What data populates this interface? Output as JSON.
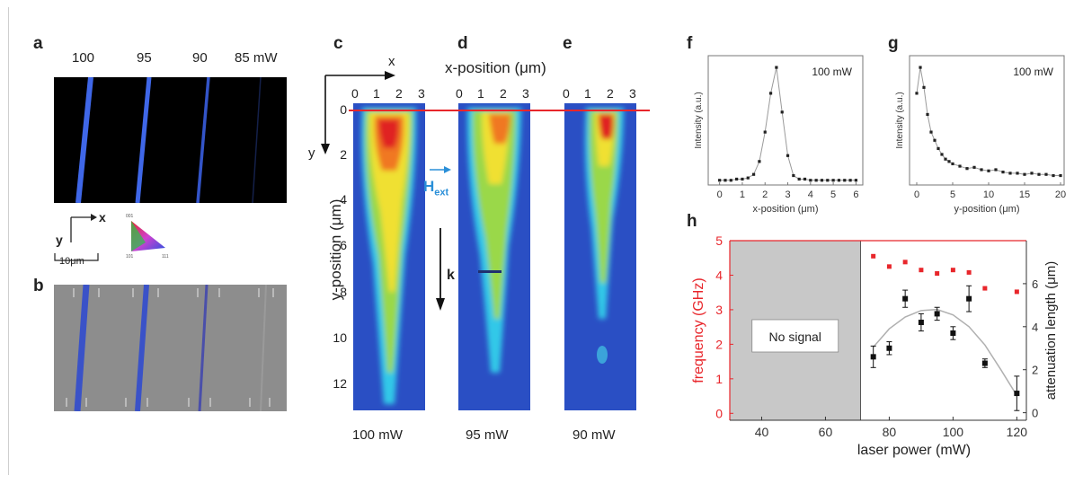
{
  "panel_labels": {
    "a": "a",
    "b": "b",
    "c": "c",
    "d": "d",
    "e": "e",
    "f": "f",
    "g": "g",
    "h": "h"
  },
  "panel_a": {
    "power_labels": [
      "100",
      "95",
      "90",
      "85 mW"
    ],
    "axis_x": "x",
    "axis_y": "y",
    "scale_bar": "10μm",
    "triangle_labels": [
      "001",
      "101",
      "111"
    ]
  },
  "panel_cde": {
    "top_axis_title": "x-position (μm)",
    "x_ticks": [
      "0",
      "1",
      "2",
      "3"
    ],
    "y_axis_title": "y-position (μm)",
    "y_ticks": [
      "0",
      "2",
      "4",
      "6",
      "8",
      "10",
      "12"
    ],
    "axis_x": "x",
    "axis_y": "y",
    "h_ext_main": "H",
    "h_ext_sub": "ext",
    "k_label": "k",
    "bottom_labels": [
      "100 mW",
      "95 mW",
      "90 mW"
    ]
  },
  "colors": {
    "blue_bg": "#2a4fc4",
    "red_line": "#e8262b",
    "hext_blue": "#2a8fd8",
    "freq_red": "#e8262b",
    "nosignal_gray": "#c8c8c8"
  },
  "chart_data": [
    {
      "id": "f",
      "type": "line",
      "annotation": "100 mW",
      "xlabel": "x-position (μm)",
      "ylabel": "Intensity (a.u.)",
      "xlim": [
        -0.5,
        6.3
      ],
      "ylim": [
        0,
        1.1
      ],
      "xticks": [
        "0",
        "1",
        "2",
        "3",
        "4",
        "5",
        "6"
      ],
      "series": [
        {
          "x": [
            0,
            0.25,
            0.5,
            0.75,
            1.0,
            1.25,
            1.5,
            1.75,
            2.0,
            2.25,
            2.5,
            2.75,
            3.0,
            3.25,
            3.5,
            3.75,
            4.0,
            4.25,
            4.5,
            4.75,
            5.0,
            5.25,
            5.5,
            5.75,
            6.0
          ],
          "y": [
            0.04,
            0.04,
            0.04,
            0.05,
            0.05,
            0.06,
            0.09,
            0.2,
            0.45,
            0.78,
            1.0,
            0.62,
            0.25,
            0.08,
            0.05,
            0.05,
            0.04,
            0.04,
            0.04,
            0.04,
            0.04,
            0.04,
            0.04,
            0.04,
            0.04
          ]
        }
      ]
    },
    {
      "id": "g",
      "type": "line",
      "annotation": "100 mW",
      "xlabel": "y-position (μm)",
      "ylabel": "Intensity (a.u.)",
      "xlim": [
        -1,
        20.5
      ],
      "ylim": [
        0,
        1.1
      ],
      "xticks": [
        "0",
        "5",
        "10",
        "15",
        "20"
      ],
      "series": [
        {
          "x": [
            0,
            0.5,
            1,
            1.5,
            2,
            2.5,
            3,
            3.5,
            4,
            4.5,
            5,
            6,
            7,
            8,
            9,
            10,
            11,
            12,
            13,
            14,
            15,
            16,
            17,
            18,
            19,
            20
          ],
          "y": [
            0.78,
            1.0,
            0.83,
            0.6,
            0.45,
            0.38,
            0.31,
            0.26,
            0.22,
            0.2,
            0.18,
            0.16,
            0.14,
            0.15,
            0.13,
            0.12,
            0.13,
            0.11,
            0.1,
            0.1,
            0.09,
            0.1,
            0.09,
            0.09,
            0.08,
            0.08
          ]
        }
      ]
    },
    {
      "id": "h",
      "type": "scatter",
      "shaded_label": "No signal",
      "shaded_range": [
        30,
        71
      ],
      "xlabel": "laser power (mW)",
      "ylabel_left": "frequency (GHz)",
      "ylabel_right": "attenuation length (μm)",
      "xlim": [
        30,
        123
      ],
      "xticks": [
        "40",
        "60",
        "80",
        "100",
        "120"
      ],
      "ylim_left": [
        -0.2,
        5
      ],
      "yticks_left": [
        "0",
        "1",
        "2",
        "3",
        "4",
        "5"
      ],
      "ylim_right": [
        -0.35,
        8.0
      ],
      "yticks_right": [
        "0",
        "2",
        "4",
        "6"
      ],
      "series": [
        {
          "name": "frequency",
          "axis": "left",
          "color": "#e8262b",
          "x": [
            75,
            80,
            85,
            90,
            95,
            100,
            105,
            110,
            120
          ],
          "y": [
            4.55,
            4.25,
            4.38,
            4.15,
            4.05,
            4.15,
            4.08,
            3.62,
            3.52
          ]
        },
        {
          "name": "attenuation length",
          "axis": "right",
          "color": "#111111",
          "x": [
            75,
            80,
            85,
            90,
            95,
            100,
            105,
            110,
            120
          ],
          "y": [
            2.6,
            3.0,
            5.3,
            4.2,
            4.6,
            3.7,
            5.3,
            2.3,
            0.9
          ],
          "err": [
            0.5,
            0.3,
            0.4,
            0.4,
            0.3,
            0.3,
            0.6,
            0.2,
            0.8
          ]
        },
        {
          "name": "fit",
          "axis": "right",
          "color": "#b0b0b0",
          "type": "line",
          "x": [
            75,
            80,
            85,
            90,
            95,
            100,
            105,
            110,
            115,
            120
          ],
          "y": [
            3.05,
            3.9,
            4.45,
            4.75,
            4.8,
            4.55,
            4.0,
            3.15,
            2.0,
            0.8
          ]
        }
      ]
    }
  ]
}
